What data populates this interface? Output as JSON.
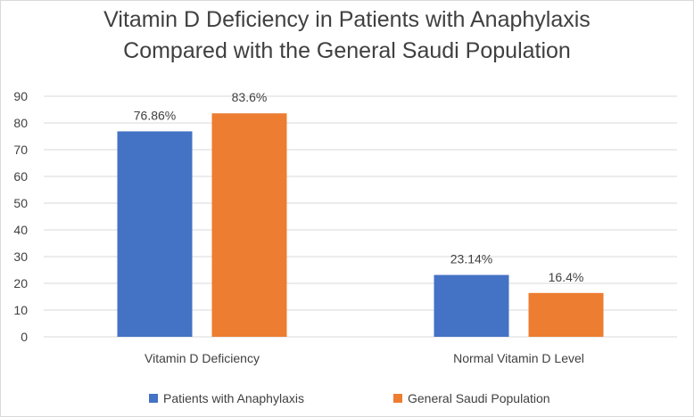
{
  "chart_data": {
    "type": "bar",
    "title_lines": [
      "Vitamin D Deficiency in Patients with Anaphylaxis",
      "Compared with the General Saudi Population"
    ],
    "categories": [
      "Vitamin D Deficiency",
      "Normal Vitamin D Level"
    ],
    "series": [
      {
        "name": "Patients with Anaphylaxis",
        "color": "#4472c4",
        "values": [
          76.86,
          23.14
        ],
        "labels": [
          "76.86%",
          "23.14%"
        ]
      },
      {
        "name": "General Saudi Population",
        "color": "#ed7d31",
        "values": [
          83.6,
          16.4
        ],
        "labels": [
          "83.6%",
          "16.4%"
        ]
      }
    ],
    "ylim": [
      0,
      90
    ],
    "yticks": [
      0,
      10,
      20,
      30,
      40,
      50,
      60,
      70,
      80,
      90
    ],
    "ytick_labels": [
      "0",
      "10",
      "20",
      "30",
      "40",
      "50",
      "60",
      "70",
      "80",
      "90"
    ],
    "grid": true,
    "legend_position": "bottom",
    "xlabel": "",
    "ylabel": ""
  }
}
